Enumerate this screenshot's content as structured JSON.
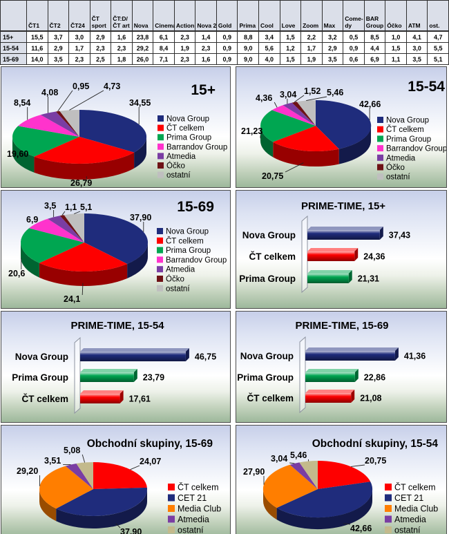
{
  "table": {
    "corner_label": "",
    "columns": [
      "ČT1",
      "ČT2",
      "ČT24",
      "ČT\nsport",
      "ČT:D/\nČT art",
      "Nova",
      "Cinema",
      "Action",
      "Nova 2",
      "Gold",
      "Prima",
      "Cool",
      "Love",
      "Zoom",
      "Max",
      "Come-\ndy",
      "BAR\nGroup",
      "Óčko",
      "ATM",
      "ost."
    ],
    "rows": [
      {
        "label": "15+",
        "values": [
          "15,5",
          "3,7",
          "3,0",
          "2,9",
          "1,6",
          "23,8",
          "6,1",
          "2,3",
          "1,4",
          "0,9",
          "8,8",
          "3,4",
          "1,5",
          "2,2",
          "3,2",
          "0,5",
          "8,5",
          "1,0",
          "4,1",
          "4,7"
        ]
      },
      {
        "label": "15-54",
        "values": [
          "11,6",
          "2,9",
          "1,7",
          "2,3",
          "2,3",
          "29,2",
          "8,4",
          "1,9",
          "2,3",
          "0,9",
          "9,0",
          "5,6",
          "1,2",
          "1,7",
          "2,9",
          "0,9",
          "4,4",
          "1,5",
          "3,0",
          "5,5"
        ]
      },
      {
        "label": "15-69",
        "values": [
          "14,0",
          "3,5",
          "2,3",
          "2,5",
          "1,8",
          "26,0",
          "7,1",
          "2,3",
          "1,6",
          "0,9",
          "9,0",
          "4,0",
          "1,5",
          "1,9",
          "3,5",
          "0,6",
          "6,9",
          "1,1",
          "3,5",
          "5,1"
        ]
      }
    ]
  },
  "colors": {
    "navy": "#1f2c7c",
    "red": "#fe0000",
    "green": "#00a651",
    "magenta": "#ff33cc",
    "purple": "#7a3da3",
    "maroon": "#6e1216",
    "gray": "#bfbfbf",
    "orange": "#ff7e00",
    "tan": "#c3ba8c"
  },
  "chart_data": [
    {
      "type": "pie",
      "title": "15+",
      "legend_position": "right",
      "labels": [
        "Nova Group",
        "ČT celkem",
        "Prima Group",
        "Barrandov Group",
        "Atmedia",
        "Óčko",
        "ostatní"
      ],
      "values": [
        34.55,
        26.79,
        19.6,
        8.54,
        4.08,
        0.95,
        4.73
      ],
      "display": [
        "34,55",
        "26,79",
        "19,60",
        "8,54",
        "4,08",
        "0,95",
        "4,73"
      ],
      "colors": [
        "#1f2c7c",
        "#fe0000",
        "#00a651",
        "#ff33cc",
        "#7a3da3",
        "#6e1216",
        "#bfbfbf"
      ]
    },
    {
      "type": "pie",
      "title": "15-54",
      "legend_position": "right",
      "labels": [
        "Nova Group",
        "ČT celkem",
        "Prima Group",
        "Barrandov Group",
        "Atmedia",
        "Óčko",
        "ostatní"
      ],
      "values": [
        42.66,
        20.75,
        21.23,
        4.36,
        3.04,
        1.52,
        5.46
      ],
      "display": [
        "42,66",
        "20,75",
        "21,23",
        "4,36",
        "3,04",
        "1,52",
        "5,46"
      ],
      "colors": [
        "#1f2c7c",
        "#fe0000",
        "#00a651",
        "#ff33cc",
        "#7a3da3",
        "#6e1216",
        "#bfbfbf"
      ]
    },
    {
      "type": "pie",
      "title": "15-69",
      "legend_position": "right",
      "labels": [
        "Nova Group",
        "ČT celkem",
        "Prima Group",
        "Barrandov Group",
        "Atmedia",
        "Óčko",
        "ostatní"
      ],
      "values": [
        37.9,
        24.1,
        20.6,
        6.9,
        3.5,
        1.1,
        5.1
      ],
      "display": [
        "37,90",
        "24,1",
        "20,6",
        "6,9",
        "3,5",
        "1,1",
        "5,1"
      ],
      "colors": [
        "#1f2c7c",
        "#fe0000",
        "#00a651",
        "#ff33cc",
        "#7a3da3",
        "#6e1216",
        "#bfbfbf"
      ]
    },
    {
      "type": "bar",
      "title": "PRIME-TIME, 15+",
      "categories": [
        "Nova Group",
        "ČT celkem",
        "Prima Group"
      ],
      "values": [
        37.43,
        24.36,
        21.31
      ],
      "display": [
        "37,43",
        "24,36",
        "21,31"
      ],
      "colors": [
        "#1f2c7c",
        "#fe0000",
        "#00a651"
      ]
    },
    {
      "type": "bar",
      "title": "PRIME-TIME, 15-54",
      "categories": [
        "Nova Group",
        "Prima Group",
        "ČT celkem"
      ],
      "values": [
        46.75,
        23.79,
        17.61
      ],
      "display": [
        "46,75",
        "23,79",
        "17,61"
      ],
      "colors": [
        "#1f2c7c",
        "#00a651",
        "#fe0000"
      ]
    },
    {
      "type": "bar",
      "title": "PRIME-TIME, 15-69",
      "categories": [
        "Nova Group",
        "Prima Group",
        "ČT celkem"
      ],
      "values": [
        41.36,
        22.86,
        21.08
      ],
      "display": [
        "41,36",
        "22,86",
        "21,08"
      ],
      "colors": [
        "#1f2c7c",
        "#00a651",
        "#fe0000"
      ]
    },
    {
      "type": "pie",
      "title": "Obchodní skupiny, 15-69",
      "legend_position": "right",
      "labels": [
        "ČT celkem",
        "CET 21",
        "Media Club",
        "Atmedia",
        "ostatní"
      ],
      "values": [
        24.07,
        37.9,
        29.2,
        3.51,
        5.08
      ],
      "display": [
        "24,07",
        "37,90",
        "29,20",
        "3,51",
        "5,08"
      ],
      "colors": [
        "#fe0000",
        "#1f2c7c",
        "#ff7e00",
        "#7a3da3",
        "#c3ba8c"
      ]
    },
    {
      "type": "pie",
      "title": "Obchodní skupiny, 15-54",
      "legend_position": "right",
      "labels": [
        "ČT celkem",
        "CET 21",
        "Media Club",
        "Atmedia",
        "ostatní"
      ],
      "values": [
        20.75,
        42.66,
        27.9,
        3.04,
        5.46
      ],
      "display": [
        "20,75",
        "42,66",
        "27,90",
        "3,04",
        "5,46"
      ],
      "colors": [
        "#fe0000",
        "#1f2c7c",
        "#ff7e00",
        "#7a3da3",
        "#c3ba8c"
      ]
    }
  ]
}
